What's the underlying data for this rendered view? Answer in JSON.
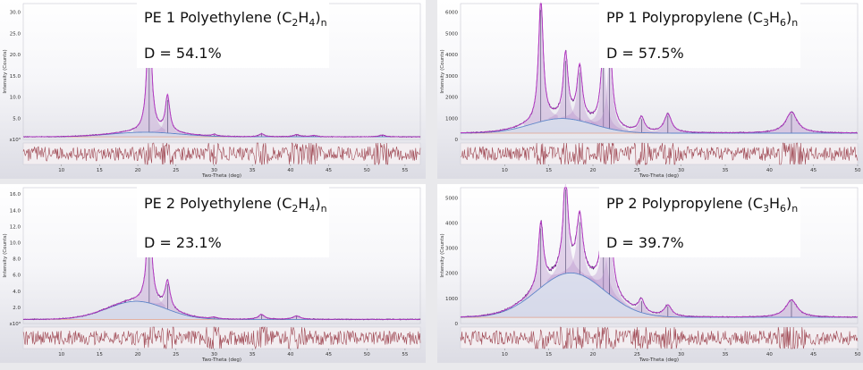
{
  "colors": {
    "observed": "#3a1f5c",
    "fit": "#c43ad0",
    "amorphous": "#5f86c9",
    "baseline": "#e0a08c",
    "residual": "#a04a55",
    "panel_bg": "#f4f4f8"
  },
  "panels": [
    {
      "id": "pe1",
      "title_main": "PE 1 Polyethylene (C",
      "sub1": "2",
      "mid": "H",
      "sub2": "4",
      "close": ")",
      "sub3": "n",
      "d_text": "D = 54.1%",
      "x_label": "Two-Theta (deg)",
      "y_label": "Intensity (Counts)",
      "y_ticks": [
        "x10³",
        "5.0",
        "10.0",
        "15.0",
        "20.0",
        "25.0",
        "30.0"
      ],
      "x_ticks": [
        "10",
        "15",
        "20",
        "25",
        "30",
        "35",
        "40",
        "45",
        "50",
        "55"
      ]
    },
    {
      "id": "pp1",
      "title_main": "PP 1 Polypropylene (C",
      "sub1": "3",
      "mid": "H",
      "sub2": "6",
      "close": ")",
      "sub3": "n",
      "d_text": "D = 57.5%",
      "x_label": "Two-Theta (deg)",
      "y_label": "Intensity (Counts)",
      "y_ticks": [
        "0",
        "1000",
        "2000",
        "3000",
        "4000",
        "5000",
        "6000"
      ],
      "x_ticks": [
        "10",
        "15",
        "20",
        "25",
        "30",
        "35",
        "40",
        "45",
        "50"
      ]
    },
    {
      "id": "pe2",
      "title_main": "PE 2 Polyethylene (C",
      "sub1": "2",
      "mid": "H",
      "sub2": "4",
      "close": ")",
      "sub3": "n",
      "d_text": "D = 23.1%",
      "x_label": "Two-Theta (deg)",
      "y_label": "Intensity (Counts)",
      "y_ticks": [
        "x10³",
        "2.0",
        "4.0",
        "6.0",
        "8.0",
        "10.0",
        "12.0",
        "14.0",
        "16.0"
      ],
      "x_ticks": [
        "10",
        "15",
        "20",
        "25",
        "30",
        "35",
        "40",
        "45",
        "50",
        "55"
      ]
    },
    {
      "id": "pp2",
      "title_main": "PP 2 Polypropylene (C",
      "sub1": "3",
      "mid": "H",
      "sub2": "6",
      "close": ")",
      "sub3": "n",
      "d_text": "D = 39.7%",
      "x_label": "Two-Theta (deg)",
      "y_label": "Intensity (Counts)",
      "y_ticks": [
        "0",
        "1000",
        "2000",
        "3000",
        "4000",
        "5000"
      ],
      "x_ticks": [
        "10",
        "15",
        "20",
        "25",
        "30",
        "35",
        "40",
        "45",
        "50"
      ]
    }
  ],
  "chart_data": [
    {
      "type": "line",
      "id": "pe1",
      "xlim": [
        5,
        57
      ],
      "ylim": [
        0,
        32000
      ],
      "baseline": 600,
      "amorphous": {
        "center": 21.0,
        "width": 4.5,
        "height": 1100
      },
      "peaks": [
        {
          "x": 21.5,
          "h": 30000,
          "w": 0.35
        },
        {
          "x": 23.9,
          "h": 8500,
          "w": 0.35
        },
        {
          "x": 30.0,
          "h": 400,
          "w": 0.4
        },
        {
          "x": 36.2,
          "h": 700,
          "w": 0.4
        },
        {
          "x": 40.8,
          "h": 500,
          "w": 0.5
        },
        {
          "x": 43.0,
          "h": 300,
          "w": 0.5
        },
        {
          "x": 52.0,
          "h": 400,
          "w": 0.5
        }
      ]
    },
    {
      "type": "line",
      "id": "pp1",
      "xlim": [
        5,
        50
      ],
      "ylim": [
        0,
        6500
      ],
      "baseline": 300,
      "amorphous": {
        "center": 16.5,
        "width": 3.5,
        "height": 700
      },
      "peaks": [
        {
          "x": 14.1,
          "h": 5800,
          "w": 0.32
        },
        {
          "x": 16.9,
          "h": 3000,
          "w": 0.32
        },
        {
          "x": 18.5,
          "h": 2500,
          "w": 0.35
        },
        {
          "x": 21.2,
          "h": 3300,
          "w": 0.35
        },
        {
          "x": 21.9,
          "h": 3600,
          "w": 0.35
        },
        {
          "x": 25.5,
          "h": 700,
          "w": 0.4
        },
        {
          "x": 28.5,
          "h": 900,
          "w": 0.5
        },
        {
          "x": 42.5,
          "h": 1000,
          "w": 0.8
        }
      ]
    },
    {
      "type": "line",
      "id": "pe2",
      "xlim": [
        5,
        57
      ],
      "ylim": [
        0,
        16500
      ],
      "baseline": 500,
      "amorphous": {
        "center": 19.8,
        "width": 3.8,
        "height": 2200
      },
      "peaks": [
        {
          "x": 21.5,
          "h": 13000,
          "w": 0.35
        },
        {
          "x": 23.9,
          "h": 3300,
          "w": 0.4
        },
        {
          "x": 30.0,
          "h": 200,
          "w": 0.5
        },
        {
          "x": 36.2,
          "h": 600,
          "w": 0.5
        },
        {
          "x": 40.8,
          "h": 400,
          "w": 0.6
        }
      ]
    },
    {
      "type": "line",
      "id": "pp2",
      "xlim": [
        5,
        50
      ],
      "ylim": [
        0,
        5500
      ],
      "baseline": 250,
      "amorphous": {
        "center": 17.5,
        "width": 3.8,
        "height": 1800
      },
      "peaks": [
        {
          "x": 14.1,
          "h": 2600,
          "w": 0.35
        },
        {
          "x": 16.9,
          "h": 3700,
          "w": 0.35
        },
        {
          "x": 18.5,
          "h": 2300,
          "w": 0.4
        },
        {
          "x": 21.2,
          "h": 2300,
          "w": 0.4
        },
        {
          "x": 21.9,
          "h": 2700,
          "w": 0.4
        },
        {
          "x": 25.5,
          "h": 500,
          "w": 0.4
        },
        {
          "x": 28.5,
          "h": 450,
          "w": 0.5
        },
        {
          "x": 42.5,
          "h": 700,
          "w": 0.8
        }
      ]
    }
  ]
}
